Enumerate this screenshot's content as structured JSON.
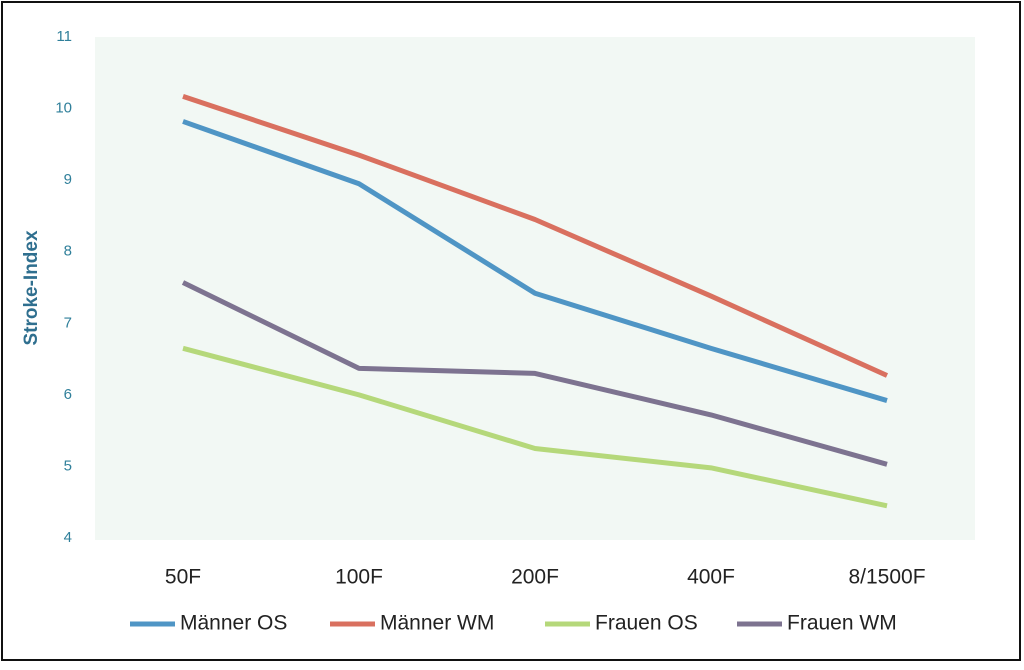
{
  "chart_data": {
    "type": "line",
    "y_label": "Stroke-Index",
    "categories": [
      "50F",
      "100F",
      "200F",
      "400F",
      "8/1500F"
    ],
    "series": [
      {
        "name": "Männer OS",
        "color": "#4f95c5",
        "values": [
          9.82,
          8.95,
          7.42,
          6.65,
          5.92
        ]
      },
      {
        "name": "Männer WM",
        "color": "#d9705f",
        "values": [
          10.17,
          9.35,
          8.45,
          7.38,
          6.27
        ]
      },
      {
        "name": "Frauen OS",
        "color": "#b5d87a",
        "values": [
          6.65,
          6.0,
          5.25,
          4.98,
          4.45
        ]
      },
      {
        "name": "Frauen WM",
        "color": "#7d7390",
        "values": [
          7.57,
          6.37,
          6.3,
          5.72,
          5.03
        ]
      }
    ],
    "ylim": [
      4,
      11
    ],
    "yticks": [
      4,
      5,
      6,
      7,
      8,
      9,
      10,
      11
    ],
    "legend": "bottom"
  }
}
